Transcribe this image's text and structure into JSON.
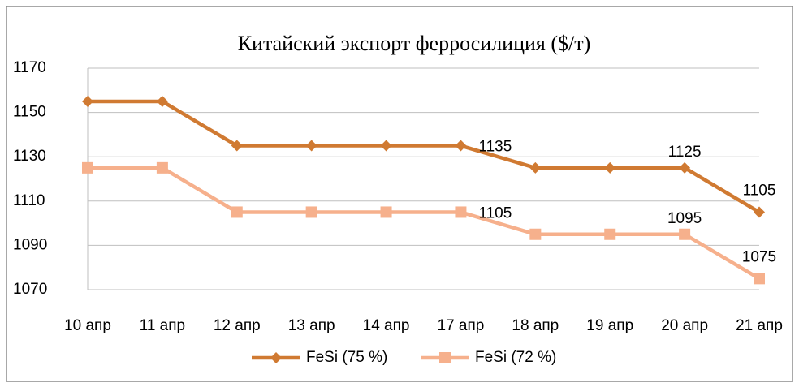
{
  "chart_data": {
    "type": "line",
    "title": "Китайский экспорт ферросилиция ($/т)",
    "categories": [
      "10 апр",
      "11 апр",
      "12 апр",
      "13 апр",
      "14 апр",
      "17 апр",
      "18 апр",
      "19 апр",
      "20 апр",
      "21 апр"
    ],
    "series": [
      {
        "name": "FeSi (75 %)",
        "color": "#d07a32",
        "marker": "diamond",
        "values": [
          1155,
          1155,
          1135,
          1135,
          1135,
          1135,
          1125,
          1125,
          1125,
          1105
        ],
        "value_labels": [
          null,
          null,
          null,
          null,
          null,
          "1135",
          null,
          null,
          "1125",
          "1105"
        ]
      },
      {
        "name": "FeSi (72 %)",
        "color": "#f6b08c",
        "marker": "square",
        "values": [
          1125,
          1125,
          1105,
          1105,
          1105,
          1105,
          1095,
          1095,
          1095,
          1075
        ],
        "value_labels": [
          null,
          null,
          null,
          null,
          null,
          "1105",
          null,
          null,
          "1095",
          "1075"
        ]
      }
    ],
    "ylim": [
      1070,
      1170
    ],
    "yticks": [
      1070,
      1090,
      1110,
      1130,
      1150,
      1170
    ],
    "grid": true,
    "legend": "bottom"
  }
}
